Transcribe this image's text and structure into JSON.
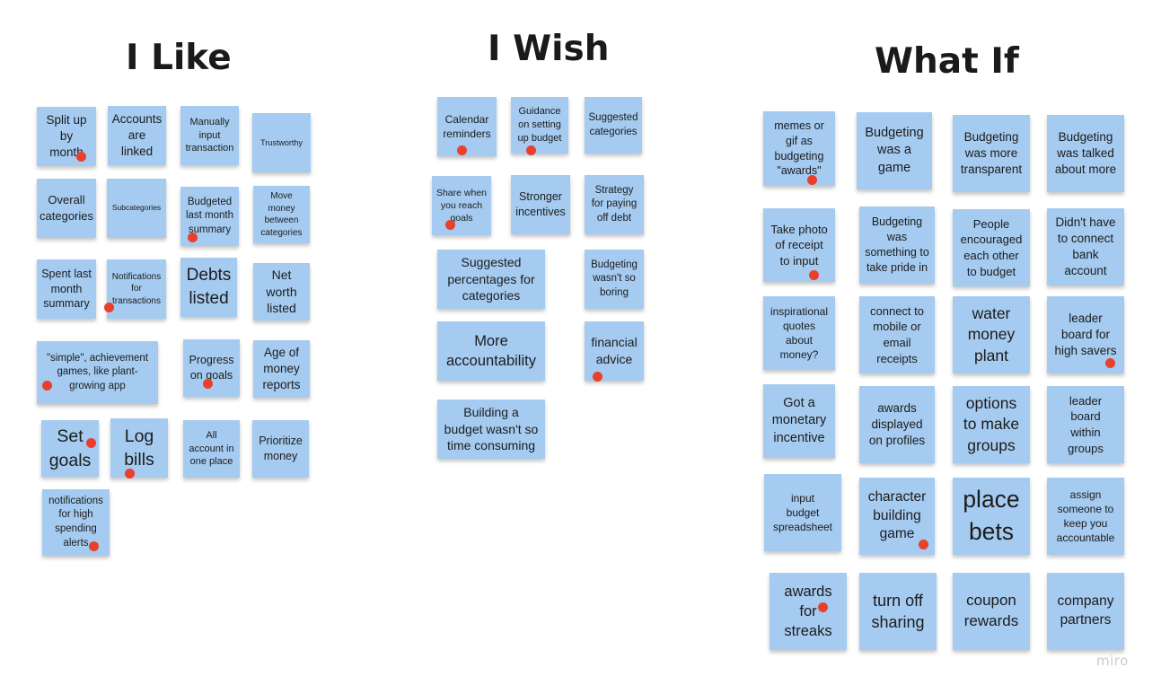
{
  "headings": {
    "like": "I Like",
    "wish": "I Wish",
    "what_if": "What If"
  },
  "notes": [
    {
      "text": "Split up\nby\nmonth",
      "dot": true
    },
    {
      "text": "Accounts\nare\nlinked",
      "dot": false
    },
    {
      "text": "Manually\ninput\ntransaction",
      "dot": false
    },
    {
      "text": "Trustworthy",
      "dot": false
    },
    {
      "text": "Overall\ncategories",
      "dot": false
    },
    {
      "text": "Subcategories",
      "dot": false
    },
    {
      "text": "Budgeted\nlast month\nsummary",
      "dot": true
    },
    {
      "text": "Move\nmoney\nbetween\ncategories",
      "dot": false
    },
    {
      "text": "Spent last\nmonth\nsummary",
      "dot": false
    },
    {
      "text": "Notifications\nfor\ntransactions",
      "dot": true
    },
    {
      "text": "Debts\nlisted",
      "dot": false
    },
    {
      "text": "Net\nworth\nlisted",
      "dot": false
    },
    {
      "text": "\"simple\", achievement\ngames, like plant-\ngrowing app",
      "dot": true
    },
    {
      "text": "Progress\non goals",
      "dot": true
    },
    {
      "text": "Age of\nmoney\nreports",
      "dot": false
    },
    {
      "text": "Set\ngoals",
      "dot": true
    },
    {
      "text": "Log\nbills",
      "dot": true
    },
    {
      "text": "All\naccount in\none place",
      "dot": false
    },
    {
      "text": "Prioritize\nmoney",
      "dot": false
    },
    {
      "text": "notifications\nfor high\nspending\nalerts",
      "dot": true
    },
    {
      "text": "Calendar\nreminders",
      "dot": true
    },
    {
      "text": "Guidance\non setting\nup budget",
      "dot": true
    },
    {
      "text": "Suggested\ncategories",
      "dot": false
    },
    {
      "text": "Share when\nyou reach\ngoals",
      "dot": true
    },
    {
      "text": "Stronger\nincentives",
      "dot": false
    },
    {
      "text": "Strategy\nfor paying\noff debt",
      "dot": false
    },
    {
      "text": "Suggested\npercentages for\ncategories",
      "dot": false
    },
    {
      "text": "Budgeting\nwasn't so\nboring",
      "dot": false
    },
    {
      "text": "More\naccountability",
      "dot": false
    },
    {
      "text": "financial\nadvice",
      "dot": true
    },
    {
      "text": "Building a\nbudget wasn't so\ntime consuming",
      "dot": false
    },
    {
      "text": "memes or\ngif as\nbudgeting\n\"awards\"",
      "dot": true
    },
    {
      "text": "Budgeting\nwas a\ngame",
      "dot": false
    },
    {
      "text": "Budgeting\nwas more\ntransparent",
      "dot": false
    },
    {
      "text": "Budgeting\nwas talked\nabout more",
      "dot": false
    },
    {
      "text": "Take photo\nof receipt\nto input",
      "dot": true
    },
    {
      "text": "Budgeting\nwas\nsomething to\ntake pride in",
      "dot": false
    },
    {
      "text": "People\nencouraged\neach other\nto budget",
      "dot": false
    },
    {
      "text": "Didn't have\nto connect\nbank\naccount",
      "dot": false
    },
    {
      "text": "inspirational\nquotes\nabout\nmoney?",
      "dot": false
    },
    {
      "text": "connect to\nmobile or\nemail\nreceipts",
      "dot": false
    },
    {
      "text": "water\nmoney\nplant",
      "dot": false
    },
    {
      "text": "leader\nboard for\nhigh savers",
      "dot": true
    },
    {
      "text": "Got a\nmonetary\nincentive",
      "dot": false
    },
    {
      "text": "awards\ndisplayed\non profiles",
      "dot": false
    },
    {
      "text": "options\nto make\ngroups",
      "dot": false
    },
    {
      "text": "leader\nboard\nwithin\ngroups",
      "dot": false
    },
    {
      "text": "input\nbudget\nspreadsheet",
      "dot": false
    },
    {
      "text": "character\nbuilding\ngame",
      "dot": true
    },
    {
      "text": "place\nbets",
      "dot": false
    },
    {
      "text": "assign\nsomeone to\nkeep you\naccountable",
      "dot": false
    },
    {
      "text": "awards\nfor\nstreaks",
      "dot": true
    },
    {
      "text": "turn off\nsharing",
      "dot": false
    },
    {
      "text": "coupon\nrewards",
      "dot": false
    },
    {
      "text": "company\npartners",
      "dot": false
    }
  ],
  "watermark": "miro",
  "colors": {
    "note": "#a5cbf0",
    "vote_dot": "#e8402c"
  }
}
